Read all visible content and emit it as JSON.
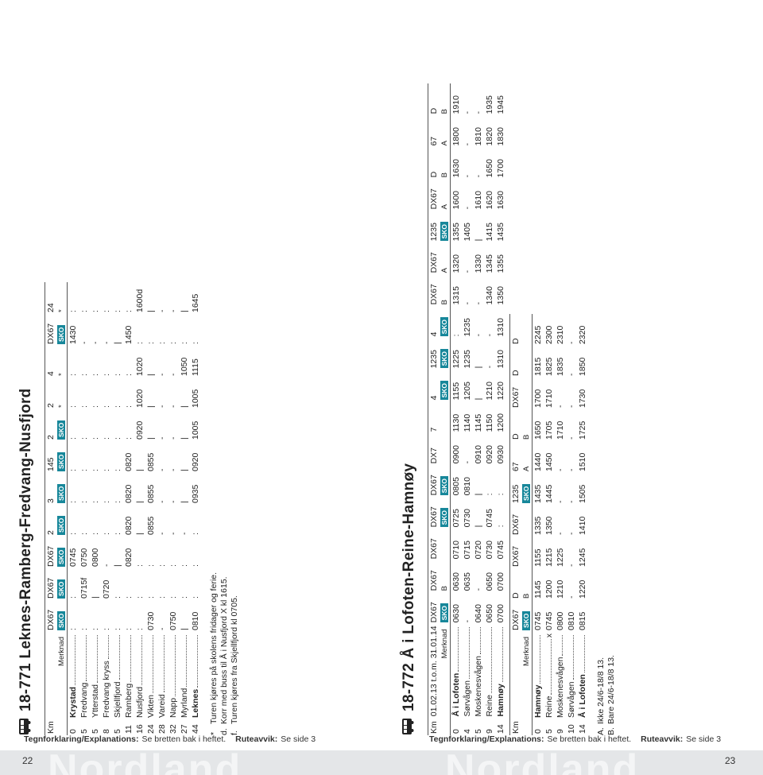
{
  "watermark": "Nordland",
  "badge_color": "#17879a",
  "pages": [
    {
      "number": "22",
      "footer": {
        "legend": "Tegnforklaring/Explanations:",
        "legend_text": "Se bretten bak i heftet.",
        "deviation": "Ruteavvik:",
        "deviation_text": "Se side 3"
      },
      "title": "18-771 Leknes-Ramberg-Fredvang-Nusfjord",
      "tables": [
        {
          "km_label": "Km",
          "remark_label": "Merknad",
          "routes": [
            "DX67",
            "DX67",
            "DX67",
            "2",
            "3",
            "145",
            "2",
            "2",
            "4",
            "DX67",
            "24"
          ],
          "remarks": [
            {
              "text": "SKO",
              "badge": true
            },
            {
              "text": "SKO",
              "badge": true
            },
            {
              "text": "SKO",
              "badge": true
            },
            {
              "text": "SKO",
              "badge": true
            },
            {
              "text": "SKO",
              "badge": true
            },
            {
              "text": "SKO",
              "badge": true
            },
            {
              "text": "SKO",
              "badge": true
            },
            "*",
            "*",
            {
              "text": "SKO",
              "badge": true
            },
            "*"
          ],
          "stops": [
            {
              "km": "0",
              "name": "Krystad",
              "bold": true,
              "times": [
                ":",
                ":",
                "0745",
                ":",
                ":",
                ":",
                ":",
                ":",
                ":",
                "1430",
                ":"
              ]
            },
            {
              "km": "5",
              "name": "Fredvang",
              "times": [
                ":",
                "0715f",
                "0750",
                ":",
                ":",
                ":",
                ":",
                ":",
                ":",
                "-",
                ":"
              ]
            },
            {
              "km": "5",
              "name": "Ytterstad",
              "times": [
                ":",
                "|",
                "0800",
                ":",
                ":",
                ":",
                ":",
                ":",
                ":",
                "-",
                ":"
              ]
            },
            {
              "km": "8",
              "name": "Fredvang kryss",
              "times": [
                ":",
                "0720",
                "-",
                ":",
                ":",
                ":",
                ":",
                ":",
                ":",
                "-",
                ":"
              ]
            },
            {
              "km": "5",
              "name": "Skjellfjord",
              "times": [
                ":",
                ":",
                "|",
                ":",
                ":",
                ":",
                ":",
                ":",
                ":",
                "|",
                ":"
              ]
            },
            {
              "km": "11",
              "name": "Ramberg",
              "times": [
                ":",
                ":",
                "0820",
                "0820",
                "0820",
                "0820",
                ":",
                ":",
                ":",
                "1450",
                ":"
              ]
            },
            {
              "km": "16",
              "name": "Nusfjord",
              "times": [
                ":",
                ":",
                ":",
                "|",
                "|",
                "|",
                "0920",
                "1020",
                "1020",
                ":",
                "1600d"
              ]
            },
            {
              "km": "24",
              "name": "Vikten",
              "times": [
                "0730",
                ":",
                ":",
                "0855",
                "0855",
                "0855",
                "|",
                "|",
                "|",
                ":",
                "|"
              ]
            },
            {
              "km": "28",
              "name": "Vareid",
              "times": [
                "-",
                ":",
                ":",
                "-",
                "-",
                "-",
                "-",
                "-",
                "-",
                ":",
                "-"
              ]
            },
            {
              "km": "32",
              "name": "Napp",
              "times": [
                "0750",
                ":",
                ":",
                "-",
                "-",
                "-",
                "-",
                "-",
                "-",
                ":",
                "-"
              ]
            },
            {
              "km": "27",
              "name": "Myrland",
              "times": [
                "|",
                ":",
                ":",
                "-",
                "|",
                "|",
                "|",
                "|",
                "1050",
                ":",
                "|"
              ]
            },
            {
              "km": "44",
              "name": "Leknes",
              "bold": true,
              "times": [
                "0810",
                ":",
                ":",
                ":",
                "0935",
                "0920",
                "1005",
                "1005",
                "1115",
                ":",
                "1645"
              ]
            }
          ]
        }
      ],
      "notes": [
        {
          "mark": "*",
          "text": "Turen kjøres på skolens fridager og ferie."
        },
        {
          "mark": "d.",
          "text": "Korr med buss til Å i Nusfjord X kl 1615."
        },
        {
          "mark": "f.",
          "text": "Turen kjøres fra Skjellfjord kl 0705."
        }
      ]
    },
    {
      "number": "23",
      "footer": {
        "legend": "Tegnforklaring/Explanations:",
        "legend_text": "Se bretten bak i heftet.",
        "deviation": "Ruteavvik:",
        "deviation_text": "Se side 3"
      },
      "title": "18-772 Å i Lofoten-Reine-Hamnøy",
      "tables": [
        {
          "km_label": "Km",
          "period": "01.02.13 t.o.m. 31.01.14",
          "remark_label": "Merknad",
          "routes": [
            "DX67",
            "DX67",
            "DX67",
            "DX67",
            "DX67",
            "DX7",
            "7",
            "4",
            "1235",
            "4",
            "DX67",
            "DX67",
            "1235",
            "DX67",
            "D",
            "67",
            "D"
          ],
          "remarks": [
            {
              "text": "SKO",
              "badge": true
            },
            "B",
            null,
            {
              "text": "SKO",
              "badge": true
            },
            {
              "text": "SKO",
              "badge": true
            },
            null,
            null,
            {
              "text": "SKO",
              "badge": true
            },
            {
              "text": "SKO",
              "badge": true
            },
            {
              "text": "SKO",
              "badge": true
            },
            "B",
            "A",
            {
              "text": "SKO",
              "badge": true
            },
            "A",
            "B",
            "A",
            "B"
          ],
          "stops": [
            {
              "km": "0",
              "name": "Å i Lofoten",
              "bold": true,
              "times": [
                "0630",
                "0630",
                "0710",
                "0725",
                "0805",
                "0900",
                "1130",
                "1155",
                "1225",
                ":",
                "1315",
                "1320",
                "1355",
                "1600",
                "1630",
                "1800",
                "1910"
              ]
            },
            {
              "km": "4",
              "name": "Sørvågen",
              "times": [
                "-",
                "0635",
                "0715",
                "0730",
                "0810",
                "-",
                "1140",
                "1205",
                "1235",
                "1235",
                "-",
                "-",
                "1405",
                "-",
                "-",
                "-",
                "-"
              ]
            },
            {
              "km": "5",
              "name": "Moskenesvågen",
              "times": [
                "0640",
                "-",
                "0720",
                "|",
                "|",
                "0910",
                "1145",
                "|",
                "|",
                "-",
                "-",
                "1330",
                "|",
                "1610",
                "-",
                "1810",
                "-"
              ]
            },
            {
              "km": "9",
              "name": "Reine",
              "times": [
                "0650",
                "0650",
                "0730",
                "0745",
                ":",
                "0920",
                "1150",
                "1210",
                "-",
                "-",
                "1340",
                "1345",
                "1415",
                "1620",
                "1650",
                "1820",
                "1935"
              ]
            },
            {
              "km": "14",
              "name": "Hamnøy",
              "bold": true,
              "times": [
                "0700",
                "0700",
                "0745",
                ":",
                ":",
                "0930",
                "1200",
                "1220",
                "1310",
                "1310",
                "1350",
                "1355",
                "1435",
                "1630",
                "1700",
                "1830",
                "1945"
              ]
            }
          ]
        },
        {
          "km_label": "Km",
          "remark_label": "Merknad",
          "routes": [
            "DX67",
            "D",
            "DX67",
            "DX67",
            "1235",
            "67",
            "D",
            "DX67",
            "D",
            "D"
          ],
          "remarks": [
            {
              "text": "SKO",
              "badge": true
            },
            "B",
            null,
            null,
            {
              "text": "SKO",
              "badge": true
            },
            "A",
            "B",
            null,
            null,
            null
          ],
          "stops": [
            {
              "km": "0",
              "name": "Hamnøy",
              "bold": true,
              "times": [
                "0745",
                "1145",
                "1155",
                "1335",
                "1435",
                "1440",
                "1650",
                "1700",
                "1815",
                "2245"
              ]
            },
            {
              "km": "5",
              "name": "Reine",
              "marker": "x",
              "times": [
                "0745",
                "1200",
                "1215",
                "1350",
                "1445",
                "1450",
                "1705",
                "1710",
                "1825",
                "2300"
              ]
            },
            {
              "km": "9",
              "name": "Moskenesvågen",
              "times": [
                "0800",
                "1210",
                "1225",
                "-",
                "-",
                "-",
                "1710",
                "-",
                "1835",
                "2310"
              ]
            },
            {
              "km": "10",
              "name": "Sørvågen",
              "times": [
                "0810",
                "-",
                "-",
                "-",
                "-",
                "-",
                "-",
                "-",
                "-",
                "-"
              ]
            },
            {
              "km": "14",
              "name": "Å i Lofoten",
              "bold": true,
              "times": [
                "0815",
                "1220",
                "1245",
                "1410",
                "1505",
                "1510",
                "1725",
                "1730",
                "1850",
                "2320"
              ]
            }
          ]
        }
      ],
      "notes": [
        {
          "mark": "A.",
          "text": "Ikke 24/6-18/8 13."
        },
        {
          "mark": "B.",
          "text": "Bare 24/6-18/8 13."
        }
      ]
    }
  ]
}
